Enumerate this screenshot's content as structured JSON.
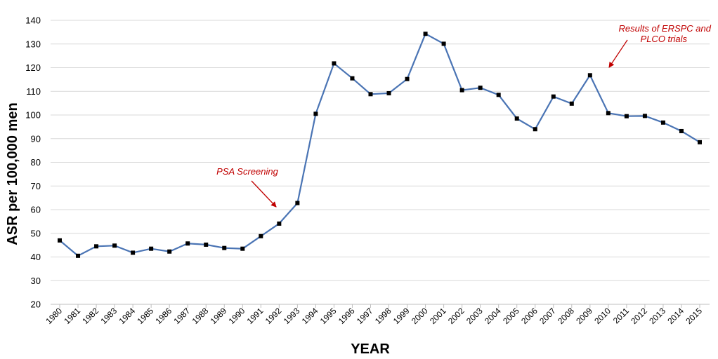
{
  "chart_data": {
    "type": "line",
    "title": "",
    "xlabel": "YEAR",
    "ylabel": "ASR per 100,000 men",
    "ylim": [
      20,
      140
    ],
    "yticks": [
      20,
      30,
      40,
      50,
      60,
      70,
      80,
      90,
      100,
      110,
      120,
      130,
      140
    ],
    "grid": true,
    "legend": "none",
    "categories": [
      "1980",
      "1981",
      "1982",
      "1983",
      "1984",
      "1985",
      "1986",
      "1987",
      "1988",
      "1989",
      "1990",
      "1991",
      "1992",
      "1993",
      "1994",
      "1995",
      "1996",
      "1997",
      "1998",
      "1999",
      "2000",
      "2001",
      "2002",
      "2003",
      "2004",
      "2005",
      "2006",
      "2007",
      "2008",
      "2009",
      "2010",
      "2011",
      "2012",
      "2013",
      "2014",
      "2015"
    ],
    "series": [
      {
        "color": "#4a74b4",
        "marker_color": "#000000",
        "values": [
          47.0,
          40.5,
          44.5,
          44.8,
          41.8,
          43.5,
          42.3,
          45.7,
          45.2,
          43.8,
          43.5,
          48.8,
          54.1,
          62.8,
          100.5,
          121.8,
          115.5,
          108.8,
          109.2,
          115.2,
          134.3,
          130.1,
          110.5,
          111.5,
          108.5,
          98.5,
          94.0,
          107.8,
          104.8,
          116.8,
          100.8,
          99.5,
          99.6,
          96.8,
          93.2,
          88.5
        ]
      }
    ],
    "annotations": [
      {
        "lines": [
          "PSA Screening"
        ],
        "arrow_to_year": "1992",
        "color": "#c00000"
      },
      {
        "lines": [
          "Results of ERSPC and",
          "PLCO trials"
        ],
        "arrow_to_year": "2010",
        "color": "#c00000"
      }
    ]
  }
}
